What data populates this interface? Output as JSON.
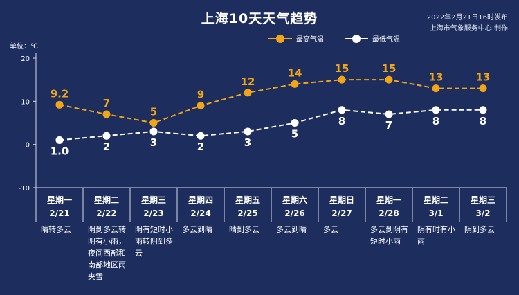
{
  "title": "上海10天天气趋势",
  "meta": {
    "published": "2022年2月21日16时发布",
    "credit": "上海市气象服务中心 制作"
  },
  "unit_label": "单位：℃",
  "colors": {
    "background": "#1c2d5e",
    "high": "#f2a516",
    "low": "#ffffff",
    "axis": "#d8dce8"
  },
  "chart_data": {
    "type": "line",
    "ylim": [
      -10,
      20
    ],
    "yticks": [
      -10,
      0,
      10,
      20
    ],
    "categories": [
      "星期一 2/21",
      "星期二 2/22",
      "星期三 2/23",
      "星期四 2/24",
      "星期五 2/25",
      "星期六 2/26",
      "星期日 2/27",
      "星期一 2/28",
      "星期二 3/1",
      "星期三 3/2"
    ],
    "series": [
      {
        "name": "最高气温",
        "values": [
          9.2,
          7,
          5,
          9,
          12,
          14,
          15,
          15,
          13,
          13
        ],
        "labels": [
          "9.2",
          "7",
          "5",
          "9",
          "12",
          "14",
          "15",
          "15",
          "13",
          "13"
        ]
      },
      {
        "name": "最低气温",
        "values": [
          1.0,
          2,
          3,
          2,
          3,
          5,
          8,
          7,
          8,
          8
        ],
        "labels": [
          "1.0",
          "2",
          "3",
          "2",
          "3",
          "5",
          "8",
          "7",
          "8",
          "8"
        ]
      }
    ]
  },
  "days": [
    {
      "weekday": "星期一",
      "date": "2/21",
      "weather": "晴转多云"
    },
    {
      "weekday": "星期二",
      "date": "2/22",
      "weather": "阴到多云转阴有小雨，夜间西部和南部地区雨夹雪"
    },
    {
      "weekday": "星期三",
      "date": "2/23",
      "weather": "阴有短时小雨转阴到多云"
    },
    {
      "weekday": "星期四",
      "date": "2/24",
      "weather": "多云到晴"
    },
    {
      "weekday": "星期五",
      "date": "2/25",
      "weather": "晴到多云"
    },
    {
      "weekday": "星期六",
      "date": "2/26",
      "weather": "多云到晴"
    },
    {
      "weekday": "星期日",
      "date": "2/27",
      "weather": "多云"
    },
    {
      "weekday": "星期一",
      "date": "2/28",
      "weather": "多云到阴有短时小雨"
    },
    {
      "weekday": "星期二",
      "date": "3/1",
      "weather": "阴有时有小雨"
    },
    {
      "weekday": "星期三",
      "date": "3/2",
      "weather": "阴到多云"
    }
  ]
}
